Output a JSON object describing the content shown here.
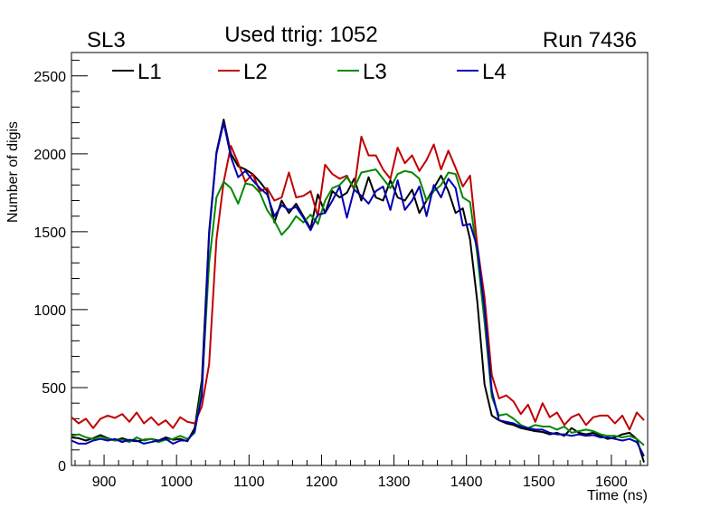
{
  "chart_data": {
    "type": "line",
    "title": "Used ttrig: 1052",
    "left_label": "SL3",
    "right_label": "Run 7436",
    "xlabel": "Time (ns)",
    "ylabel": "Number of digis",
    "xlim": [
      855,
      1650
    ],
    "ylim": [
      0,
      2650
    ],
    "x_ticks": [
      900,
      1000,
      1100,
      1200,
      1300,
      1400,
      1500,
      1600
    ],
    "y_ticks": [
      0,
      500,
      1000,
      1500,
      2000,
      2500
    ],
    "grid": false,
    "legend_position": "top",
    "series": [
      {
        "name": "L1",
        "color": "#000000",
        "x": [
          855,
          865,
          875,
          885,
          895,
          905,
          915,
          925,
          935,
          945,
          955,
          965,
          975,
          985,
          995,
          1005,
          1015,
          1025,
          1035,
          1045,
          1055,
          1065,
          1075,
          1085,
          1095,
          1105,
          1115,
          1125,
          1135,
          1145,
          1155,
          1165,
          1175,
          1185,
          1195,
          1205,
          1215,
          1225,
          1235,
          1245,
          1255,
          1265,
          1275,
          1285,
          1295,
          1305,
          1315,
          1325,
          1335,
          1345,
          1355,
          1365,
          1375,
          1385,
          1395,
          1405,
          1415,
          1425,
          1435,
          1445,
          1455,
          1465,
          1475,
          1485,
          1495,
          1505,
          1515,
          1525,
          1535,
          1545,
          1555,
          1565,
          1575,
          1585,
          1595,
          1605,
          1615,
          1625,
          1635,
          1645
        ],
        "values": [
          180,
          175,
          160,
          175,
          195,
          175,
          160,
          175,
          160,
          155,
          165,
          170,
          160,
          180,
          165,
          170,
          155,
          240,
          550,
          1500,
          2010,
          2220,
          2000,
          1920,
          1900,
          1870,
          1820,
          1760,
          1560,
          1700,
          1620,
          1680,
          1600,
          1520,
          1740,
          1620,
          1760,
          1720,
          1750,
          1840,
          1700,
          1850,
          1720,
          1700,
          1830,
          1720,
          1700,
          1770,
          1620,
          1700,
          1780,
          1860,
          1760,
          1620,
          1650,
          1450,
          1050,
          520,
          320,
          290,
          270,
          260,
          240,
          230,
          220,
          215,
          200,
          210,
          190,
          240,
          210,
          200,
          210,
          190,
          170,
          180,
          200,
          210,
          170,
          20
        ]
      },
      {
        "name": "L2",
        "color": "#c00000",
        "x": [
          855,
          865,
          875,
          885,
          895,
          905,
          915,
          925,
          935,
          945,
          955,
          965,
          975,
          985,
          995,
          1005,
          1015,
          1025,
          1035,
          1045,
          1055,
          1065,
          1075,
          1085,
          1095,
          1105,
          1115,
          1125,
          1135,
          1145,
          1155,
          1165,
          1175,
          1185,
          1195,
          1205,
          1215,
          1225,
          1235,
          1245,
          1255,
          1265,
          1275,
          1285,
          1295,
          1305,
          1315,
          1325,
          1335,
          1345,
          1355,
          1365,
          1375,
          1385,
          1395,
          1405,
          1415,
          1425,
          1435,
          1445,
          1455,
          1465,
          1475,
          1485,
          1495,
          1505,
          1515,
          1525,
          1535,
          1545,
          1555,
          1565,
          1575,
          1585,
          1595,
          1605,
          1615,
          1625,
          1635,
          1645
        ],
        "values": [
          310,
          270,
          300,
          240,
          300,
          320,
          305,
          330,
          280,
          340,
          270,
          310,
          260,
          290,
          240,
          310,
          280,
          270,
          380,
          650,
          1450,
          1820,
          2050,
          1940,
          1820,
          1870,
          1760,
          1780,
          1700,
          1720,
          1880,
          1720,
          1730,
          1760,
          1600,
          1930,
          1870,
          1840,
          1860,
          1770,
          2110,
          1990,
          1990,
          1900,
          1840,
          2040,
          1940,
          1990,
          1890,
          1960,
          2060,
          1900,
          2020,
          1910,
          1790,
          1860,
          1410,
          1080,
          580,
          430,
          450,
          410,
          330,
          390,
          280,
          400,
          310,
          340,
          260,
          310,
          330,
          260,
          310,
          320,
          320,
          270,
          320,
          230,
          340,
          290
        ]
      },
      {
        "name": "L3",
        "color": "#008800",
        "x": [
          855,
          865,
          875,
          885,
          895,
          905,
          915,
          925,
          935,
          945,
          955,
          965,
          975,
          985,
          995,
          1005,
          1015,
          1025,
          1035,
          1045,
          1055,
          1065,
          1075,
          1085,
          1095,
          1105,
          1115,
          1125,
          1135,
          1145,
          1155,
          1165,
          1175,
          1185,
          1195,
          1205,
          1215,
          1225,
          1235,
          1245,
          1255,
          1265,
          1275,
          1285,
          1295,
          1305,
          1315,
          1325,
          1335,
          1345,
          1355,
          1365,
          1375,
          1385,
          1395,
          1405,
          1415,
          1425,
          1435,
          1445,
          1455,
          1465,
          1475,
          1485,
          1495,
          1505,
          1515,
          1525,
          1535,
          1545,
          1555,
          1565,
          1575,
          1585,
          1595,
          1605,
          1615,
          1625,
          1635,
          1645
        ],
        "values": [
          190,
          200,
          180,
          170,
          185,
          170,
          160,
          165,
          150,
          180,
          160,
          170,
          150,
          165,
          170,
          190,
          170,
          210,
          500,
          1300,
          1720,
          1820,
          1780,
          1680,
          1810,
          1800,
          1750,
          1640,
          1570,
          1480,
          1530,
          1600,
          1560,
          1610,
          1550,
          1700,
          1780,
          1800,
          1850,
          1780,
          1880,
          1890,
          1900,
          1840,
          1780,
          1870,
          1890,
          1880,
          1840,
          1700,
          1760,
          1800,
          1880,
          1870,
          1720,
          1690,
          1350,
          920,
          440,
          320,
          330,
          300,
          260,
          240,
          260,
          250,
          250,
          230,
          250,
          210,
          220,
          230,
          220,
          200,
          190,
          190,
          180,
          190,
          170,
          130
        ]
      },
      {
        "name": "L4",
        "color": "#0000b0",
        "x": [
          855,
          865,
          875,
          885,
          895,
          905,
          915,
          925,
          935,
          945,
          955,
          965,
          975,
          985,
          995,
          1005,
          1015,
          1025,
          1035,
          1045,
          1055,
          1065,
          1075,
          1085,
          1095,
          1105,
          1115,
          1125,
          1135,
          1145,
          1155,
          1165,
          1175,
          1185,
          1195,
          1205,
          1215,
          1225,
          1235,
          1245,
          1255,
          1265,
          1275,
          1285,
          1295,
          1305,
          1315,
          1325,
          1335,
          1345,
          1355,
          1365,
          1375,
          1385,
          1395,
          1405,
          1415,
          1425,
          1435,
          1445,
          1455,
          1465,
          1475,
          1485,
          1495,
          1505,
          1515,
          1525,
          1535,
          1545,
          1555,
          1565,
          1575,
          1585,
          1595,
          1605,
          1615,
          1625,
          1635,
          1645
        ],
        "values": [
          160,
          140,
          140,
          160,
          170,
          160,
          170,
          150,
          165,
          160,
          140,
          150,
          160,
          170,
          140,
          160,
          160,
          220,
          450,
          1480,
          2000,
          2200,
          1980,
          1850,
          1890,
          1830,
          1780,
          1740,
          1600,
          1670,
          1640,
          1660,
          1590,
          1510,
          1610,
          1620,
          1700,
          1790,
          1590,
          1770,
          1730,
          1680,
          1760,
          1790,
          1640,
          1830,
          1640,
          1700,
          1790,
          1600,
          1800,
          1720,
          1840,
          1780,
          1540,
          1550,
          1400,
          1000,
          480,
          290,
          280,
          270,
          250,
          240,
          230,
          230,
          210,
          200,
          200,
          190,
          200,
          190,
          195,
          180,
          180,
          170,
          160,
          170,
          150,
          60
        ]
      }
    ]
  }
}
